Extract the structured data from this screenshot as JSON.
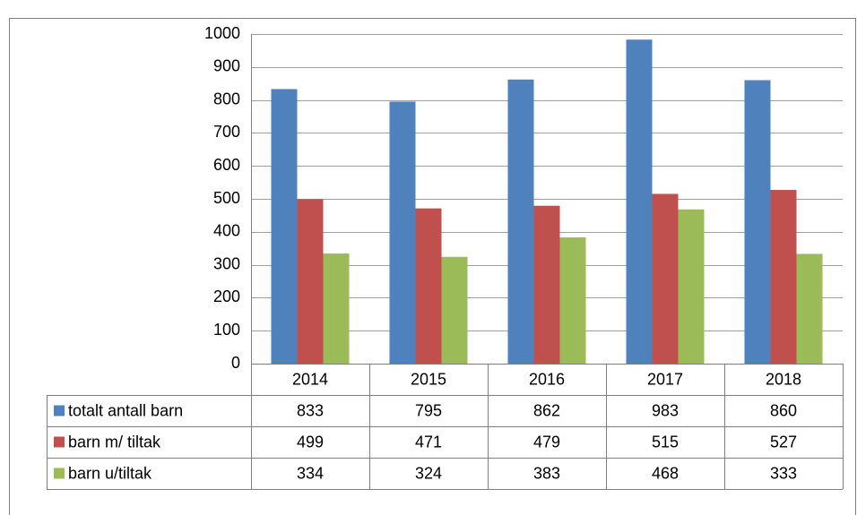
{
  "chart_data": {
    "type": "bar",
    "categories": [
      "2014",
      "2015",
      "2016",
      "2017",
      "2018"
    ],
    "series": [
      {
        "name": "totalt antall barn",
        "color": "#4f81bd",
        "values": [
          833,
          795,
          862,
          983,
          860
        ]
      },
      {
        "name": "barn m/ tiltak",
        "color": "#c0504d",
        "values": [
          499,
          471,
          479,
          515,
          527
        ]
      },
      {
        "name": "barn u/tiltak",
        "color": "#9bbb59",
        "values": [
          334,
          324,
          383,
          468,
          333
        ]
      }
    ],
    "ylim": [
      0,
      1000
    ],
    "yticks": [
      0,
      100,
      200,
      300,
      400,
      500,
      600,
      700,
      800,
      900,
      1000
    ],
    "grid": true
  }
}
